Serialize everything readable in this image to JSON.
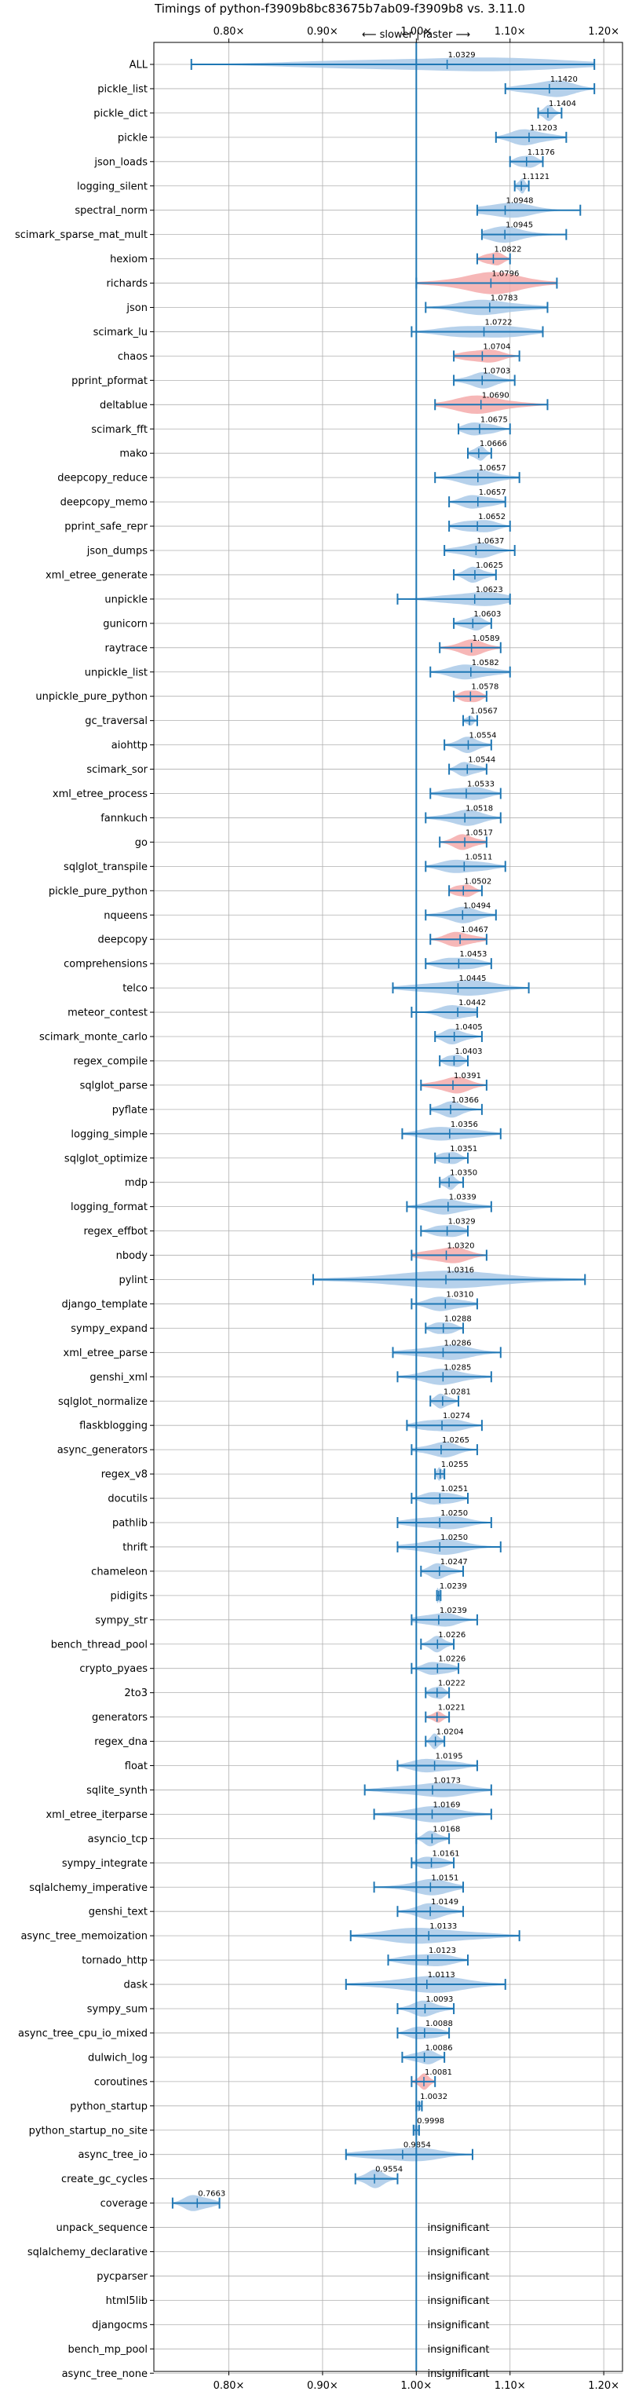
{
  "chart_data": {
    "type": "violin",
    "title": "Timings of python-f3909b8bc83675b7ab09-f3909b8 vs. 3.11.0",
    "annotation": "⟵ slower | faster ⟶",
    "xlim": [
      0.72,
      1.22
    ],
    "x_ticks": [
      {
        "value": 0.8,
        "label": "0.80×"
      },
      {
        "value": 0.9,
        "label": "0.90×"
      },
      {
        "value": 1.0,
        "label": "1.00×"
      },
      {
        "value": 1.1,
        "label": "1.10×"
      },
      {
        "value": 1.2,
        "label": "1.20×"
      }
    ],
    "reference_line": 1.0,
    "grid": true,
    "colors": {
      "faster": "#a9c9e8",
      "slower": "#f4aaaa",
      "line": "#1f77b4",
      "grid": "#b0b0b0"
    },
    "benchmarks": [
      {
        "name": "ALL",
        "value": 1.0329,
        "label": "1.0329",
        "lo": 0.76,
        "hi": 1.19,
        "width": 0.7,
        "slower": false
      },
      {
        "name": "pickle_list",
        "value": 1.142,
        "label": "1.1420",
        "lo": 1.095,
        "hi": 1.19,
        "width": 0.8,
        "slower": false
      },
      {
        "name": "pickle_dict",
        "value": 1.1404,
        "label": "1.1404",
        "lo": 1.13,
        "hi": 1.155,
        "width": 0.7,
        "slower": false
      },
      {
        "name": "pickle",
        "value": 1.1203,
        "label": "1.1203",
        "lo": 1.085,
        "hi": 1.16,
        "width": 0.75,
        "slower": false
      },
      {
        "name": "json_loads",
        "value": 1.1176,
        "label": "1.1176",
        "lo": 1.1,
        "hi": 1.135,
        "width": 0.7,
        "slower": false
      },
      {
        "name": "logging_silent",
        "value": 1.1121,
        "label": "1.1121",
        "lo": 1.105,
        "hi": 1.12,
        "width": 0.7,
        "slower": false
      },
      {
        "name": "spectral_norm",
        "value": 1.0948,
        "label": "1.0948",
        "lo": 1.065,
        "hi": 1.175,
        "width": 0.7,
        "slower": false
      },
      {
        "name": "scimark_sparse_mat_mult",
        "value": 1.0945,
        "label": "1.0945",
        "lo": 1.07,
        "hi": 1.16,
        "width": 0.7,
        "slower": false
      },
      {
        "name": "hexiom",
        "value": 1.0822,
        "label": "1.0822",
        "lo": 1.065,
        "hi": 1.1,
        "width": 0.7,
        "slower": true
      },
      {
        "name": "richards",
        "value": 1.0796,
        "label": "1.0796",
        "lo": 1.0,
        "hi": 1.15,
        "width": 0.95,
        "slower": true
      },
      {
        "name": "json",
        "value": 1.0783,
        "label": "1.0783",
        "lo": 1.01,
        "hi": 1.14,
        "width": 0.7,
        "slower": false
      },
      {
        "name": "scimark_lu",
        "value": 1.0722,
        "label": "1.0722",
        "lo": 0.995,
        "hi": 1.135,
        "width": 0.7,
        "slower": false
      },
      {
        "name": "chaos",
        "value": 1.0704,
        "label": "1.0704",
        "lo": 1.04,
        "hi": 1.11,
        "width": 0.7,
        "slower": true
      },
      {
        "name": "pprint_pformat",
        "value": 1.0703,
        "label": "1.0703",
        "lo": 1.04,
        "hi": 1.105,
        "width": 0.7,
        "slower": false
      },
      {
        "name": "deltablue",
        "value": 1.069,
        "label": "1.0690",
        "lo": 1.02,
        "hi": 1.14,
        "width": 0.8,
        "slower": true
      },
      {
        "name": "scimark_fft",
        "value": 1.0675,
        "label": "1.0675",
        "lo": 1.045,
        "hi": 1.1,
        "width": 0.7,
        "slower": false
      },
      {
        "name": "mako",
        "value": 1.0666,
        "label": "1.0666",
        "lo": 1.055,
        "hi": 1.08,
        "width": 0.7,
        "slower": false
      },
      {
        "name": "deepcopy_reduce",
        "value": 1.0657,
        "label": "1.0657",
        "lo": 1.02,
        "hi": 1.11,
        "width": 0.7,
        "slower": false
      },
      {
        "name": "deepcopy_memo",
        "value": 1.0657,
        "label": "1.0657",
        "lo": 1.035,
        "hi": 1.095,
        "width": 0.7,
        "slower": false
      },
      {
        "name": "pprint_safe_repr",
        "value": 1.0652,
        "label": "1.0652",
        "lo": 1.035,
        "hi": 1.1,
        "width": 0.7,
        "slower": false
      },
      {
        "name": "json_dumps",
        "value": 1.0637,
        "label": "1.0637",
        "lo": 1.03,
        "hi": 1.105,
        "width": 0.7,
        "slower": false
      },
      {
        "name": "xml_etree_generate",
        "value": 1.0625,
        "label": "1.0625",
        "lo": 1.04,
        "hi": 1.085,
        "width": 0.7,
        "slower": false
      },
      {
        "name": "unpickle",
        "value": 1.0623,
        "label": "1.0623",
        "lo": 0.98,
        "hi": 1.1,
        "width": 0.7,
        "slower": false
      },
      {
        "name": "gunicorn",
        "value": 1.0603,
        "label": "1.0603",
        "lo": 1.04,
        "hi": 1.08,
        "width": 0.7,
        "slower": false
      },
      {
        "name": "raytrace",
        "value": 1.0589,
        "label": "1.0589",
        "lo": 1.025,
        "hi": 1.09,
        "width": 0.7,
        "slower": true
      },
      {
        "name": "unpickle_list",
        "value": 1.0582,
        "label": "1.0582",
        "lo": 1.015,
        "hi": 1.1,
        "width": 0.7,
        "slower": false
      },
      {
        "name": "unpickle_pure_python",
        "value": 1.0578,
        "label": "1.0578",
        "lo": 1.04,
        "hi": 1.075,
        "width": 0.7,
        "slower": true
      },
      {
        "name": "gc_traversal",
        "value": 1.0567,
        "label": "1.0567",
        "lo": 1.05,
        "hi": 1.065,
        "width": 0.5,
        "slower": false
      },
      {
        "name": "aiohttp",
        "value": 1.0554,
        "label": "1.0554",
        "lo": 1.03,
        "hi": 1.08,
        "width": 0.7,
        "slower": false
      },
      {
        "name": "scimark_sor",
        "value": 1.0544,
        "label": "1.0544",
        "lo": 1.035,
        "hi": 1.075,
        "width": 0.7,
        "slower": false
      },
      {
        "name": "xml_etree_process",
        "value": 1.0533,
        "label": "1.0533",
        "lo": 1.015,
        "hi": 1.09,
        "width": 0.7,
        "slower": false
      },
      {
        "name": "fannkuch",
        "value": 1.0518,
        "label": "1.0518",
        "lo": 1.01,
        "hi": 1.09,
        "width": 0.7,
        "slower": false
      },
      {
        "name": "go",
        "value": 1.0517,
        "label": "1.0517",
        "lo": 1.025,
        "hi": 1.075,
        "width": 0.7,
        "slower": true
      },
      {
        "name": "sqlglot_transpile",
        "value": 1.0511,
        "label": "1.0511",
        "lo": 1.01,
        "hi": 1.095,
        "width": 0.7,
        "slower": false
      },
      {
        "name": "pickle_pure_python",
        "value": 1.0502,
        "label": "1.0502",
        "lo": 1.035,
        "hi": 1.07,
        "width": 0.7,
        "slower": true
      },
      {
        "name": "nqueens",
        "value": 1.0494,
        "label": "1.0494",
        "lo": 1.01,
        "hi": 1.085,
        "width": 0.7,
        "slower": false
      },
      {
        "name": "deepcopy",
        "value": 1.0467,
        "label": "1.0467",
        "lo": 1.015,
        "hi": 1.075,
        "width": 0.7,
        "slower": true
      },
      {
        "name": "comprehensions",
        "value": 1.0453,
        "label": "1.0453",
        "lo": 1.01,
        "hi": 1.08,
        "width": 0.7,
        "slower": false
      },
      {
        "name": "telco",
        "value": 1.0445,
        "label": "1.0445",
        "lo": 0.975,
        "hi": 1.12,
        "width": 0.75,
        "slower": false
      },
      {
        "name": "meteor_contest",
        "value": 1.0442,
        "label": "1.0442",
        "lo": 0.995,
        "hi": 1.065,
        "width": 0.7,
        "slower": false
      },
      {
        "name": "scimark_monte_carlo",
        "value": 1.0405,
        "label": "1.0405",
        "lo": 1.02,
        "hi": 1.07,
        "width": 0.7,
        "slower": false
      },
      {
        "name": "regex_compile",
        "value": 1.0403,
        "label": "1.0403",
        "lo": 1.025,
        "hi": 1.055,
        "width": 0.7,
        "slower": false
      },
      {
        "name": "sqlglot_parse",
        "value": 1.0391,
        "label": "1.0391",
        "lo": 1.005,
        "hi": 1.075,
        "width": 0.75,
        "slower": true
      },
      {
        "name": "pyflate",
        "value": 1.0366,
        "label": "1.0366",
        "lo": 1.015,
        "hi": 1.07,
        "width": 0.7,
        "slower": false
      },
      {
        "name": "logging_simple",
        "value": 1.0356,
        "label": "1.0356",
        "lo": 0.985,
        "hi": 1.09,
        "width": 0.7,
        "slower": false
      },
      {
        "name": "sqlglot_optimize",
        "value": 1.0351,
        "label": "1.0351",
        "lo": 1.02,
        "hi": 1.055,
        "width": 0.7,
        "slower": false
      },
      {
        "name": "mdp",
        "value": 1.035,
        "label": "1.0350",
        "lo": 1.025,
        "hi": 1.05,
        "width": 0.7,
        "slower": false
      },
      {
        "name": "logging_format",
        "value": 1.0339,
        "label": "1.0339",
        "lo": 0.99,
        "hi": 1.08,
        "width": 0.7,
        "slower": false
      },
      {
        "name": "regex_effbot",
        "value": 1.0329,
        "label": "1.0329",
        "lo": 1.005,
        "hi": 1.055,
        "width": 0.7,
        "slower": false
      },
      {
        "name": "nbody",
        "value": 1.032,
        "label": "1.0320",
        "lo": 0.995,
        "hi": 1.075,
        "width": 0.8,
        "slower": true
      },
      {
        "name": "pylint",
        "value": 1.0316,
        "label": "1.0316",
        "lo": 0.89,
        "hi": 1.18,
        "width": 0.75,
        "slower": false
      },
      {
        "name": "django_template",
        "value": 1.031,
        "label": "1.0310",
        "lo": 0.995,
        "hi": 1.065,
        "width": 0.7,
        "slower": false
      },
      {
        "name": "sympy_expand",
        "value": 1.0288,
        "label": "1.0288",
        "lo": 1.01,
        "hi": 1.05,
        "width": 0.7,
        "slower": false
      },
      {
        "name": "xml_etree_parse",
        "value": 1.0286,
        "label": "1.0286",
        "lo": 0.975,
        "hi": 1.09,
        "width": 0.7,
        "slower": false
      },
      {
        "name": "genshi_xml",
        "value": 1.0285,
        "label": "1.0285",
        "lo": 0.98,
        "hi": 1.08,
        "width": 0.7,
        "slower": false
      },
      {
        "name": "sqlglot_normalize",
        "value": 1.0281,
        "label": "1.0281",
        "lo": 1.015,
        "hi": 1.045,
        "width": 0.7,
        "slower": false
      },
      {
        "name": "flaskblogging",
        "value": 1.0274,
        "label": "1.0274",
        "lo": 0.99,
        "hi": 1.07,
        "width": 0.7,
        "slower": false
      },
      {
        "name": "async_generators",
        "value": 1.0265,
        "label": "1.0265",
        "lo": 0.995,
        "hi": 1.065,
        "width": 0.7,
        "slower": false
      },
      {
        "name": "regex_v8",
        "value": 1.0255,
        "label": "1.0255",
        "lo": 1.02,
        "hi": 1.03,
        "width": 0.6,
        "slower": false
      },
      {
        "name": "docutils",
        "value": 1.0251,
        "label": "1.0251",
        "lo": 0.995,
        "hi": 1.055,
        "width": 0.7,
        "slower": false
      },
      {
        "name": "pathlib",
        "value": 1.025,
        "label": "1.0250",
        "lo": 0.98,
        "hi": 1.08,
        "width": 0.7,
        "slower": false
      },
      {
        "name": "thrift",
        "value": 1.025,
        "label": "1.0250",
        "lo": 0.98,
        "hi": 1.09,
        "width": 0.7,
        "slower": false
      },
      {
        "name": "chameleon",
        "value": 1.0247,
        "label": "1.0247",
        "lo": 1.005,
        "hi": 1.05,
        "width": 0.7,
        "slower": false
      },
      {
        "name": "pidigits",
        "value": 1.0239,
        "label": "1.0239",
        "lo": 1.022,
        "hi": 1.026,
        "width": 0.7,
        "slower": false
      },
      {
        "name": "sympy_str",
        "value": 1.0239,
        "label": "1.0239",
        "lo": 0.995,
        "hi": 1.065,
        "width": 0.7,
        "slower": false
      },
      {
        "name": "bench_thread_pool",
        "value": 1.0226,
        "label": "1.0226",
        "lo": 1.005,
        "hi": 1.04,
        "width": 0.7,
        "slower": false
      },
      {
        "name": "crypto_pyaes",
        "value": 1.0226,
        "label": "1.0226",
        "lo": 0.995,
        "hi": 1.045,
        "width": 0.7,
        "slower": false
      },
      {
        "name": "2to3",
        "value": 1.0222,
        "label": "1.0222",
        "lo": 1.01,
        "hi": 1.035,
        "width": 0.7,
        "slower": false
      },
      {
        "name": "generators",
        "value": 1.0221,
        "label": "1.0221",
        "lo": 1.01,
        "hi": 1.035,
        "width": 0.5,
        "slower": true
      },
      {
        "name": "regex_dna",
        "value": 1.0204,
        "label": "1.0204",
        "lo": 1.01,
        "hi": 1.03,
        "width": 0.7,
        "slower": false
      },
      {
        "name": "float",
        "value": 1.0195,
        "label": "1.0195",
        "lo": 0.98,
        "hi": 1.065,
        "width": 0.7,
        "slower": false
      },
      {
        "name": "sqlite_synth",
        "value": 1.0173,
        "label": "1.0173",
        "lo": 0.945,
        "hi": 1.08,
        "width": 0.7,
        "slower": false
      },
      {
        "name": "xml_etree_iterparse",
        "value": 1.0169,
        "label": "1.0169",
        "lo": 0.955,
        "hi": 1.08,
        "width": 0.7,
        "slower": false
      },
      {
        "name": "asyncio_tcp",
        "value": 1.0168,
        "label": "1.0168",
        "lo": 1.0,
        "hi": 1.035,
        "width": 0.7,
        "slower": false
      },
      {
        "name": "sympy_integrate",
        "value": 1.0161,
        "label": "1.0161",
        "lo": 0.995,
        "hi": 1.04,
        "width": 0.7,
        "slower": false
      },
      {
        "name": "sqlalchemy_imperative",
        "value": 1.0151,
        "label": "1.0151",
        "lo": 0.955,
        "hi": 1.05,
        "width": 0.7,
        "slower": false
      },
      {
        "name": "genshi_text",
        "value": 1.0149,
        "label": "1.0149",
        "lo": 0.98,
        "hi": 1.05,
        "width": 0.7,
        "slower": false
      },
      {
        "name": "async_tree_memoization",
        "value": 1.0133,
        "label": "1.0133",
        "lo": 0.93,
        "hi": 1.11,
        "width": 0.75,
        "slower": false
      },
      {
        "name": "tornado_http",
        "value": 1.0123,
        "label": "1.0123",
        "lo": 0.97,
        "hi": 1.055,
        "width": 0.7,
        "slower": false
      },
      {
        "name": "dask",
        "value": 1.0113,
        "label": "1.0113",
        "lo": 0.925,
        "hi": 1.095,
        "width": 0.75,
        "slower": false
      },
      {
        "name": "sympy_sum",
        "value": 1.0093,
        "label": "1.0093",
        "lo": 0.98,
        "hi": 1.04,
        "width": 0.7,
        "slower": false
      },
      {
        "name": "async_tree_cpu_io_mixed",
        "value": 1.0088,
        "label": "1.0088",
        "lo": 0.98,
        "hi": 1.035,
        "width": 0.7,
        "slower": false
      },
      {
        "name": "dulwich_log",
        "value": 1.0086,
        "label": "1.0086",
        "lo": 0.985,
        "hi": 1.03,
        "width": 0.7,
        "slower": false
      },
      {
        "name": "coroutines",
        "value": 1.0081,
        "label": "1.0081",
        "lo": 0.995,
        "hi": 1.02,
        "width": 0.7,
        "slower": true
      },
      {
        "name": "python_startup",
        "value": 1.0032,
        "label": "1.0032",
        "lo": 1.0,
        "hi": 1.006,
        "width": 0.5,
        "slower": false
      },
      {
        "name": "python_startup_no_site",
        "value": 0.9998,
        "label": "0.9998",
        "lo": 0.997,
        "hi": 1.003,
        "width": 0.5,
        "slower": false
      },
      {
        "name": "async_tree_io",
        "value": 0.9854,
        "label": "0.9854",
        "lo": 0.925,
        "hi": 1.06,
        "width": 0.7,
        "slower": false
      },
      {
        "name": "create_gc_cycles",
        "value": 0.9554,
        "label": "0.9554",
        "lo": 0.935,
        "hi": 0.98,
        "width": 0.8,
        "slower": false
      },
      {
        "name": "coverage",
        "value": 0.7663,
        "label": "0.7663",
        "lo": 0.74,
        "hi": 0.79,
        "width": 0.8,
        "slower": false
      },
      {
        "name": "unpack_sequence",
        "insignificant": true,
        "label": "insignificant"
      },
      {
        "name": "sqlalchemy_declarative",
        "insignificant": true,
        "label": "insignificant"
      },
      {
        "name": "pycparser",
        "insignificant": true,
        "label": "insignificant"
      },
      {
        "name": "html5lib",
        "insignificant": true,
        "label": "insignificant"
      },
      {
        "name": "djangocms",
        "insignificant": true,
        "label": "insignificant"
      },
      {
        "name": "bench_mp_pool",
        "insignificant": true,
        "label": "insignificant"
      },
      {
        "name": "async_tree_none",
        "insignificant": true,
        "label": "insignificant"
      }
    ]
  }
}
